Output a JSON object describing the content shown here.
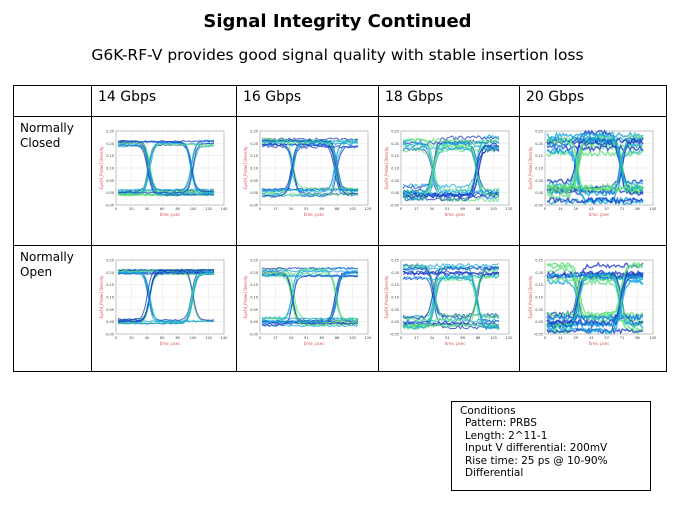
{
  "title": "Signal Integrity Continued",
  "subtitle": "G6K-RF-V provides good signal quality with stable insertion loss",
  "columns": [
    "14 Gbps",
    "16 Gbps",
    "18 Gbps",
    "20 Gbps"
  ],
  "rows": [
    {
      "label": "Normally Closed"
    },
    {
      "label": "Normally Open"
    }
  ],
  "plot": {
    "ylabel": "Eye[V_Probe] Density",
    "xlabel": "time, psec",
    "yticks": [
      "0.25",
      "0.20",
      "0.15",
      "0.10",
      "0.05",
      "0.00",
      "-0.05"
    ],
    "xmax": [
      140,
      120,
      120,
      100
    ]
  },
  "conditions": {
    "heading": "Conditions",
    "items": [
      "Pattern: PRBS",
      "Length: 2^11-1",
      "Input V differential: 200mV",
      "Rise time: 25 ps @ 10-90%",
      "Differential"
    ]
  },
  "colors": {
    "trace_dark": "#1a3cc8",
    "trace_mid": "#16a6e0",
    "trace_light": "#5fe07a",
    "axis_label": "#e05050"
  }
}
